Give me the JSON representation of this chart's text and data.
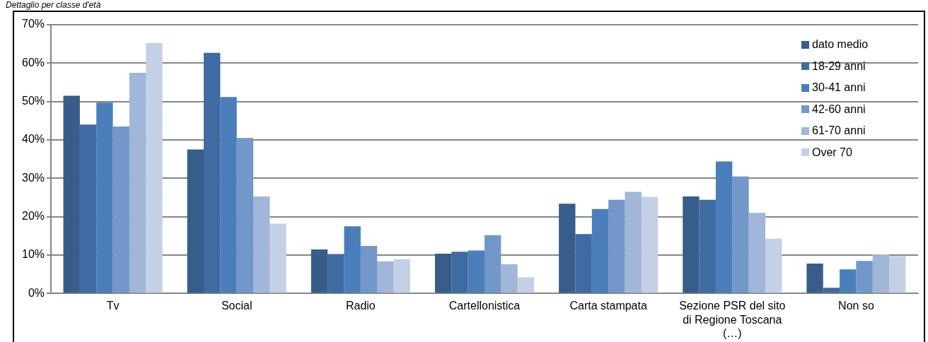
{
  "chart_data": {
    "type": "bar",
    "title": "Dettaglio per classe d'età",
    "categories": [
      "Tv",
      "Social",
      "Radio",
      "Cartellonistica",
      "Carta stampata",
      "Sezione PSR del sito\ndi Regione Toscana\n(…)",
      "Non so"
    ],
    "series": [
      {
        "name": "dato medio",
        "color": "#385d8a",
        "values": [
          51.5,
          37.5,
          11.5,
          10.4,
          23.4,
          25.3,
          7.8
        ]
      },
      {
        "name": "18-29 anni",
        "color": "#3f6ba3",
        "values": [
          44,
          62.7,
          10.3,
          10.9,
          15.5,
          24.4,
          1.5
        ]
      },
      {
        "name": "30-41 anni",
        "color": "#4a7ebb",
        "values": [
          49.7,
          51.2,
          17.5,
          11.2,
          22,
          34.4,
          6.3
        ]
      },
      {
        "name": "42-60 anni",
        "color": "#7397c9",
        "values": [
          43.5,
          40.5,
          12.4,
          15.2,
          24.4,
          30.5,
          8.5
        ]
      },
      {
        "name": "61-70 anni",
        "color": "#a1b6d8",
        "values": [
          57.5,
          25.3,
          8.4,
          7.6,
          26.5,
          21,
          10.2
        ]
      },
      {
        "name": "Over 70",
        "color": "#c4d0e5",
        "values": [
          65.2,
          18.2,
          8.9,
          4.2,
          25.2,
          14.3,
          9.8
        ]
      }
    ],
    "ylim": [
      0,
      70
    ],
    "yticks": [
      {
        "value": 0,
        "label": "0%"
      },
      {
        "value": 10,
        "label": "10%"
      },
      {
        "value": 20,
        "label": "20%"
      },
      {
        "value": 30,
        "label": "30%"
      },
      {
        "value": 40,
        "label": "40%"
      },
      {
        "value": 50,
        "label": "50%"
      },
      {
        "value": 60,
        "label": "60%"
      },
      {
        "value": 70,
        "label": "70%"
      }
    ],
    "grid": "y",
    "legend": "top right"
  }
}
